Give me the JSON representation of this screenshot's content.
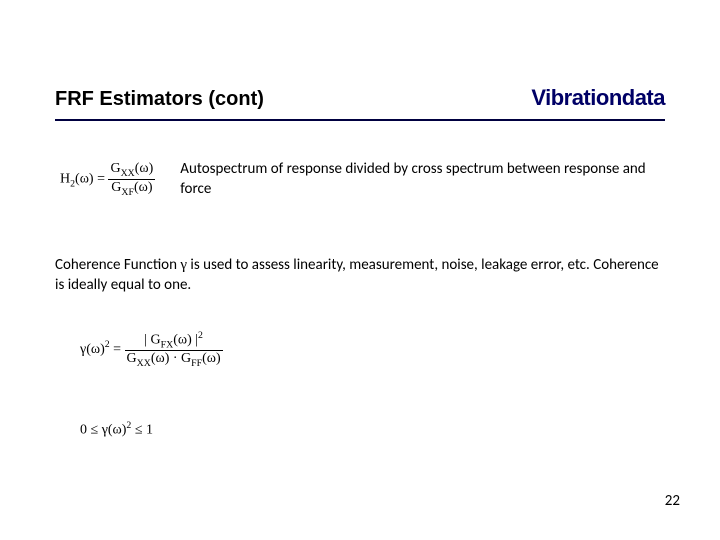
{
  "header": {
    "title_left": "FRF Estimators (cont)",
    "title_right": "Vibrationdata",
    "underline_color": "#000040"
  },
  "h2_formula": {
    "lhs": "H",
    "lhs_sub": "2",
    "arg": "(ω) =",
    "num_sym": "G",
    "num_sub": "XX",
    "num_arg": "(ω)",
    "den_sym": "G",
    "den_sub": "XF",
    "den_arg": "(ω)"
  },
  "h2_desc": "Autospectrum of response divided by cross spectrum between response and force",
  "coherence": {
    "line1_a": "Coherence Function ",
    "line1_sym": "γ",
    "line1_b": " is used to assess linearity, measurement, noise, leakage error, etc.    Coherence is ideally equal to one."
  },
  "gamma_formula": {
    "lhs_sym": "γ",
    "lhs_arg": "(ω)",
    "lhs_sup": "2",
    "eq": " = ",
    "num_bar_l": "| ",
    "num_sym": "G",
    "num_sub": "FX",
    "num_arg": "(ω)",
    "num_bar_r": " |",
    "num_sup": "2",
    "den1_sym": "G",
    "den1_sub": "XX",
    "den1_arg": "(ω)",
    "dot": " · ",
    "den2_sym": "G",
    "den2_sub": "FF",
    "den2_arg": "(ω)"
  },
  "bound_formula": {
    "low": "0 ≤ ",
    "sym": "γ",
    "arg": "(ω)",
    "sup": "2",
    "high": " ≤ 1"
  },
  "page_number": "22",
  "colors": {
    "background": "#ffffff",
    "text": "#000000",
    "brand": "#000066"
  }
}
